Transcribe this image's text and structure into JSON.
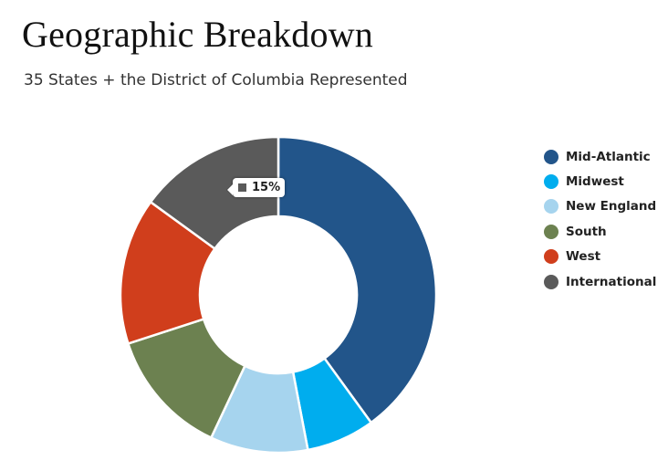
{
  "header": {
    "title": "Geographic Breakdown",
    "subtitle": "35 States + the District of Columbia Represented"
  },
  "chart_data": {
    "type": "pie",
    "donut": true,
    "categories": [
      "Mid-Atlantic",
      "Midwest",
      "New England",
      "South",
      "West",
      "International"
    ],
    "values": [
      40,
      7,
      10,
      13,
      15,
      15
    ],
    "colors": [
      "#22558a",
      "#00adee",
      "#a6d4ee",
      "#6c8150",
      "#d03e1c",
      "#5a5a5a"
    ],
    "legend_position": "right",
    "tooltip": {
      "category": "International",
      "label": "15%"
    }
  }
}
